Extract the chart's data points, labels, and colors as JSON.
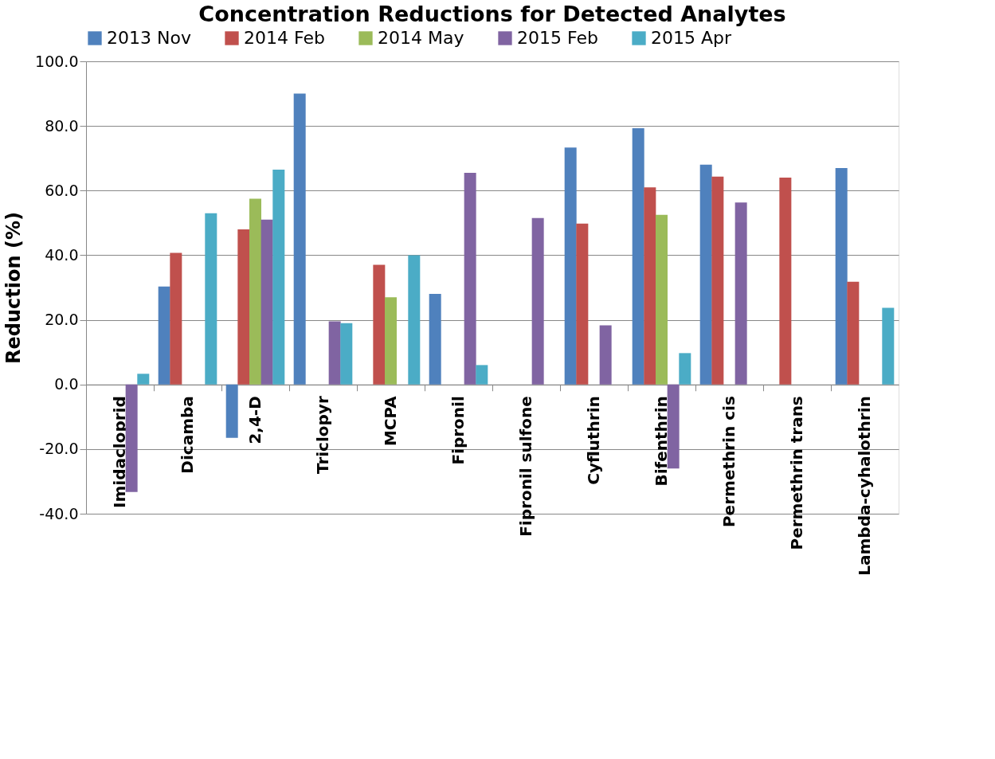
{
  "chart_data": {
    "type": "bar",
    "title": "Concentration Reductions for Detected Analytes",
    "ylabel": "Reduction (%)",
    "categories": [
      "Imidacloprid",
      "Dicamba",
      "2,4-D",
      "Triclopyr",
      "MCPA",
      "Fipronil",
      "Fipronil sulfone",
      "Cyfluthrin",
      "Bifenthrin",
      "Permethrin cis",
      "Permethrin trans",
      "Lambda-cyhalothrin"
    ],
    "series": [
      {
        "name": "2013 Nov",
        "color": "#4f81bd",
        "values": [
          null,
          30.3,
          -16.5,
          90.0,
          null,
          28.0,
          null,
          73.3,
          79.3,
          68.0,
          null,
          67.0
        ]
      },
      {
        "name": "2014 Feb",
        "color": "#c0504d",
        "values": [
          null,
          40.7,
          48.0,
          null,
          37.0,
          null,
          null,
          49.8,
          61.0,
          64.3,
          64.0,
          31.8
        ]
      },
      {
        "name": "2014 May",
        "color": "#9bbb59",
        "values": [
          null,
          null,
          57.5,
          null,
          27.0,
          null,
          null,
          null,
          52.5,
          null,
          null,
          null
        ]
      },
      {
        "name": "2015 Feb",
        "color": "#8064a2",
        "values": [
          -33.3,
          null,
          51.0,
          19.5,
          null,
          65.5,
          51.5,
          18.3,
          -26.0,
          56.3,
          null,
          null
        ]
      },
      {
        "name": "2015 Apr",
        "color": "#4bacc6",
        "values": [
          3.3,
          53.0,
          66.5,
          19.0,
          40.0,
          6.0,
          null,
          null,
          9.7,
          null,
          null,
          23.7
        ]
      }
    ],
    "ylim": [
      -40,
      100
    ],
    "yticks": [
      {
        "value": -40,
        "label": "-40.0"
      },
      {
        "value": -20,
        "label": "-20.0"
      },
      {
        "value": 0,
        "label": "0.0"
      },
      {
        "value": 20,
        "label": "20.0"
      },
      {
        "value": 40,
        "label": "40.0"
      },
      {
        "value": 60,
        "label": "60.0"
      },
      {
        "value": 80,
        "label": "80.0"
      },
      {
        "value": 100,
        "label": "100.0"
      }
    ],
    "grid": "y",
    "legend": "top"
  }
}
